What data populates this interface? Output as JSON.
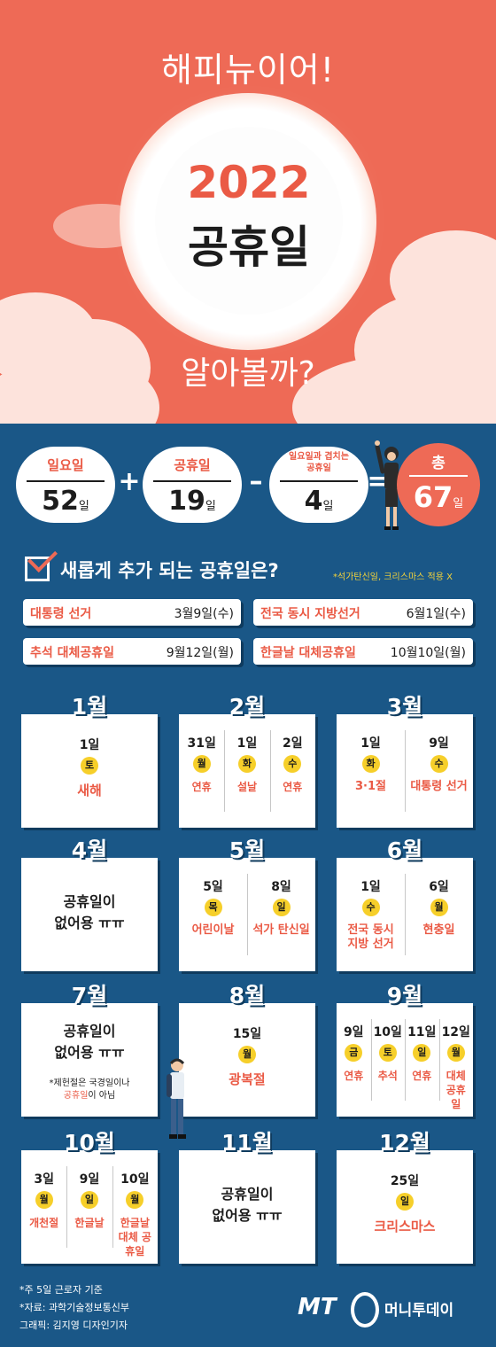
{
  "hero": {
    "greeting": "해피뉴이어!",
    "year": "2022",
    "title": "공휴일",
    "question": "알아볼까?"
  },
  "equation": {
    "sundays": {
      "label": "일요일",
      "value": "52",
      "unit": "일"
    },
    "plus": "+",
    "holidays": {
      "label": "공휴일",
      "value": "19",
      "unit": "일"
    },
    "minus": "–",
    "overlap": {
      "label_line1": "일요일과 겹치는",
      "label_line2": "공휴일",
      "value": "4",
      "unit": "일"
    },
    "equals": "=",
    "total": {
      "label": "총",
      "value": "67",
      "unit": "일"
    }
  },
  "new_holidays": {
    "title": "새롭게 추가 되는 공휴일은?",
    "note": "*석가탄신일, 크리스마스 적용 X",
    "items": [
      {
        "name": "대통령 선거",
        "date": "3월9일(수)"
      },
      {
        "name": "전국 동시 지방선거",
        "date": "6월1일(수)"
      },
      {
        "name": "추석 대체공휴일",
        "date": "9월12일(월)"
      },
      {
        "name": "한글날 대체공휴일",
        "date": "10월10일(월)"
      }
    ]
  },
  "months": [
    {
      "title": "1월",
      "days": [
        {
          "day": "1일",
          "dow": "토",
          "name": "새해"
        }
      ]
    },
    {
      "title": "2월",
      "days": [
        {
          "day": "31일",
          "dow": "월",
          "name": "연휴"
        },
        {
          "day": "1일",
          "dow": "화",
          "name": "설날"
        },
        {
          "day": "2일",
          "dow": "수",
          "name": "연휴"
        }
      ]
    },
    {
      "title": "3월",
      "days": [
        {
          "day": "1일",
          "dow": "화",
          "name": "3·1절"
        },
        {
          "day": "9일",
          "dow": "수",
          "name": "대통령 선거"
        }
      ]
    },
    {
      "title": "4월",
      "none_line1": "공휴일이",
      "none_line2": "없어용 ㅠㅠ"
    },
    {
      "title": "5월",
      "days": [
        {
          "day": "5일",
          "dow": "목",
          "name": "어린이날"
        },
        {
          "day": "8일",
          "dow": "일",
          "name": "석가 탄신일"
        }
      ]
    },
    {
      "title": "6월",
      "days": [
        {
          "day": "1일",
          "dow": "수",
          "name": "전국 동시 지방 선거"
        },
        {
          "day": "6일",
          "dow": "월",
          "name": "현충일"
        }
      ]
    },
    {
      "title": "7월",
      "none_line1": "공휴일이",
      "none_line2": "없어용 ㅠㅠ",
      "note_line1": "*제헌절은 국경일이나",
      "note_red": "공휴일",
      "note_rest": "이 아님"
    },
    {
      "title": "8월",
      "days": [
        {
          "day": "15일",
          "dow": "월",
          "name": "광복절"
        }
      ]
    },
    {
      "title": "9월",
      "days": [
        {
          "day": "9일",
          "dow": "금",
          "name": "연휴"
        },
        {
          "day": "10일",
          "dow": "토",
          "name": "추석"
        },
        {
          "day": "11일",
          "dow": "일",
          "name": "연휴"
        },
        {
          "day": "12일",
          "dow": "월",
          "name": "대체 공휴일"
        }
      ]
    },
    {
      "title": "10월",
      "days": [
        {
          "day": "3일",
          "dow": "월",
          "name": "개천절"
        },
        {
          "day": "9일",
          "dow": "일",
          "name": "한글날"
        },
        {
          "day": "10일",
          "dow": "월",
          "name": "한글날 대체 공휴일"
        }
      ]
    },
    {
      "title": "11월",
      "none_line1": "공휴일이",
      "none_line2": "없어용 ㅠㅠ"
    },
    {
      "title": "12월",
      "days": [
        {
          "day": "25일",
          "dow": "일",
          "name": "크리스마스"
        }
      ]
    }
  ],
  "footer": {
    "note1": "*주 5일 근로자 기준",
    "note2": "*자료: 과학기술정보통신부",
    "credit": "그래픽: 김지영 디자인기자",
    "logo_mt": "MT",
    "logo_name": "머니투데이"
  },
  "colors": {
    "coral": "#ee6a56",
    "navy": "#1a5787",
    "yellow": "#f6cf2a"
  }
}
